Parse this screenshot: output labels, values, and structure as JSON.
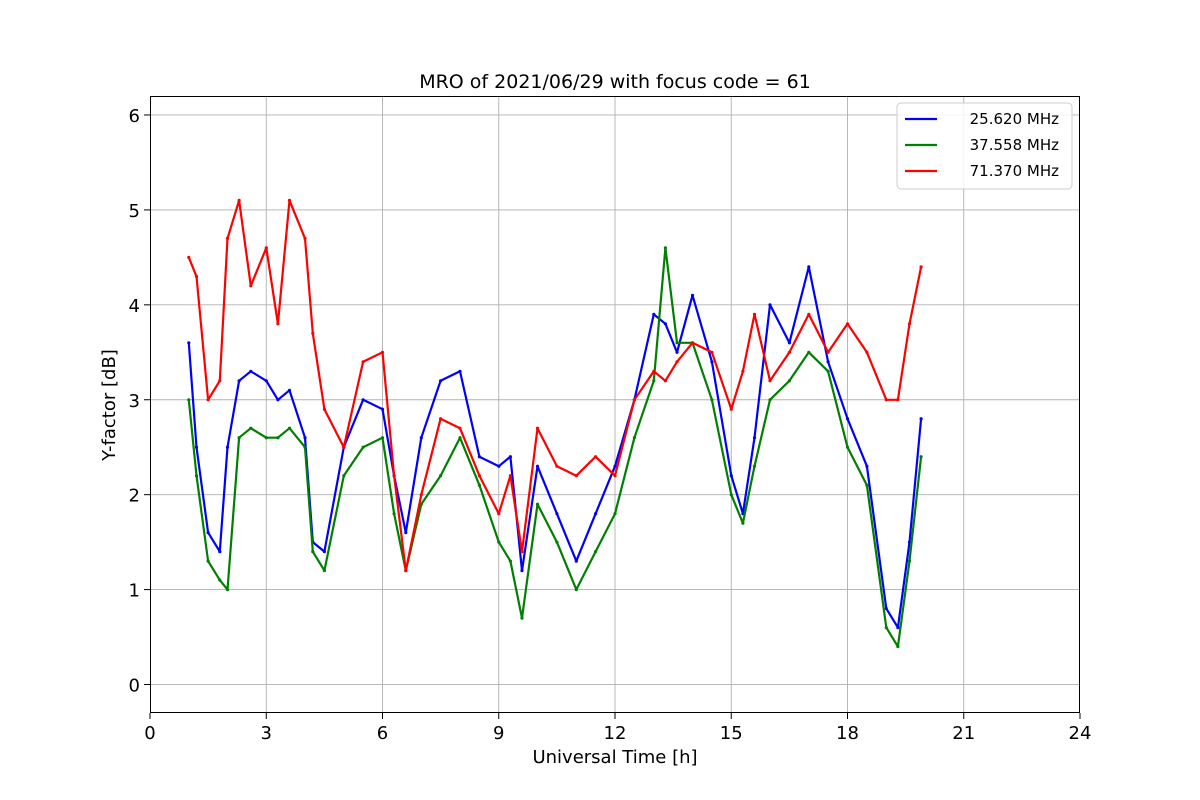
{
  "chart_data": {
    "type": "line",
    "title": "MRO of 2021/06/29 with focus code = 61",
    "xlabel": "Universal Time [h]",
    "ylabel": "Y-factor [dB]",
    "xlim": [
      0,
      24
    ],
    "ylim": [
      -0.3,
      6.2
    ],
    "xticks": [
      0,
      3,
      6,
      9,
      12,
      15,
      18,
      21,
      24
    ],
    "yticks": [
      0,
      1,
      2,
      3,
      4,
      5,
      6
    ],
    "grid": true,
    "legend_position": "top-right",
    "series": [
      {
        "name": "25.620 MHz",
        "color": "#0000ff",
        "x": [
          1.0,
          1.2,
          1.5,
          1.8,
          2.0,
          2.3,
          2.6,
          3.0,
          3.3,
          3.6,
          4.0,
          4.2,
          4.5,
          5.0,
          5.5,
          6.0,
          6.3,
          6.6,
          7.0,
          7.5,
          8.0,
          8.5,
          9.0,
          9.3,
          9.6,
          10.0,
          10.5,
          11.0,
          11.5,
          12.0,
          12.5,
          13.0,
          13.3,
          13.6,
          14.0,
          14.5,
          15.0,
          15.3,
          15.6,
          16.0,
          16.5,
          17.0,
          17.5,
          18.0,
          18.5,
          19.0,
          19.3,
          19.6,
          19.9
        ],
        "values": [
          3.6,
          2.5,
          1.6,
          1.4,
          2.5,
          3.2,
          3.3,
          3.2,
          3.0,
          3.1,
          2.6,
          1.5,
          1.4,
          2.5,
          3.0,
          2.9,
          2.2,
          1.6,
          2.6,
          3.2,
          3.3,
          2.4,
          2.3,
          2.4,
          1.2,
          2.3,
          1.8,
          1.3,
          1.8,
          2.3,
          3.0,
          3.9,
          3.8,
          3.5,
          4.1,
          3.4,
          2.2,
          1.8,
          2.6,
          4.0,
          3.6,
          4.4,
          3.4,
          2.8,
          2.3,
          0.8,
          0.6,
          1.5,
          2.8
        ]
      },
      {
        "name": "37.558 MHz",
        "color": "#008000",
        "x": [
          1.0,
          1.2,
          1.5,
          1.8,
          2.0,
          2.3,
          2.6,
          3.0,
          3.3,
          3.6,
          4.0,
          4.2,
          4.5,
          5.0,
          5.5,
          6.0,
          6.3,
          6.6,
          7.0,
          7.5,
          8.0,
          8.5,
          9.0,
          9.3,
          9.6,
          10.0,
          10.5,
          11.0,
          11.5,
          12.0,
          12.5,
          13.0,
          13.3,
          13.6,
          14.0,
          14.5,
          15.0,
          15.3,
          15.6,
          16.0,
          16.5,
          17.0,
          17.5,
          18.0,
          18.5,
          19.0,
          19.3,
          19.6,
          19.9
        ],
        "values": [
          3.0,
          2.2,
          1.3,
          1.1,
          1.0,
          2.6,
          2.7,
          2.6,
          2.6,
          2.7,
          2.5,
          1.4,
          1.2,
          2.2,
          2.5,
          2.6,
          1.8,
          1.2,
          1.9,
          2.2,
          2.6,
          2.1,
          1.5,
          1.3,
          0.7,
          1.9,
          1.5,
          1.0,
          1.4,
          1.8,
          2.6,
          3.2,
          4.6,
          3.6,
          3.6,
          3.0,
          2.0,
          1.7,
          2.3,
          3.0,
          3.2,
          3.5,
          3.3,
          2.5,
          2.1,
          0.6,
          0.4,
          1.3,
          2.4
        ]
      },
      {
        "name": "71.370 MHz",
        "color": "#ff0000",
        "x": [
          1.0,
          1.2,
          1.5,
          1.8,
          2.0,
          2.3,
          2.6,
          3.0,
          3.3,
          3.6,
          4.0,
          4.2,
          4.5,
          5.0,
          5.5,
          6.0,
          6.3,
          6.6,
          7.0,
          7.5,
          8.0,
          8.5,
          9.0,
          9.3,
          9.6,
          10.0,
          10.5,
          11.0,
          11.5,
          12.0,
          12.5,
          13.0,
          13.3,
          13.6,
          14.0,
          14.5,
          15.0,
          15.3,
          15.6,
          16.0,
          16.5,
          17.0,
          17.5,
          18.0,
          18.5,
          19.0,
          19.3,
          19.6,
          19.9
        ],
        "values": [
          4.5,
          4.3,
          3.0,
          3.2,
          4.7,
          5.1,
          4.2,
          4.6,
          3.8,
          5.1,
          4.7,
          3.7,
          2.9,
          2.5,
          3.4,
          3.5,
          2.2,
          1.2,
          2.0,
          2.8,
          2.7,
          2.2,
          1.8,
          2.2,
          1.4,
          2.7,
          2.3,
          2.2,
          2.4,
          2.2,
          3.0,
          3.3,
          3.2,
          3.4,
          3.6,
          3.5,
          2.9,
          3.3,
          3.9,
          3.2,
          3.5,
          3.9,
          3.5,
          3.8,
          3.5,
          3.0,
          3.0,
          3.8,
          4.4
        ]
      }
    ]
  }
}
